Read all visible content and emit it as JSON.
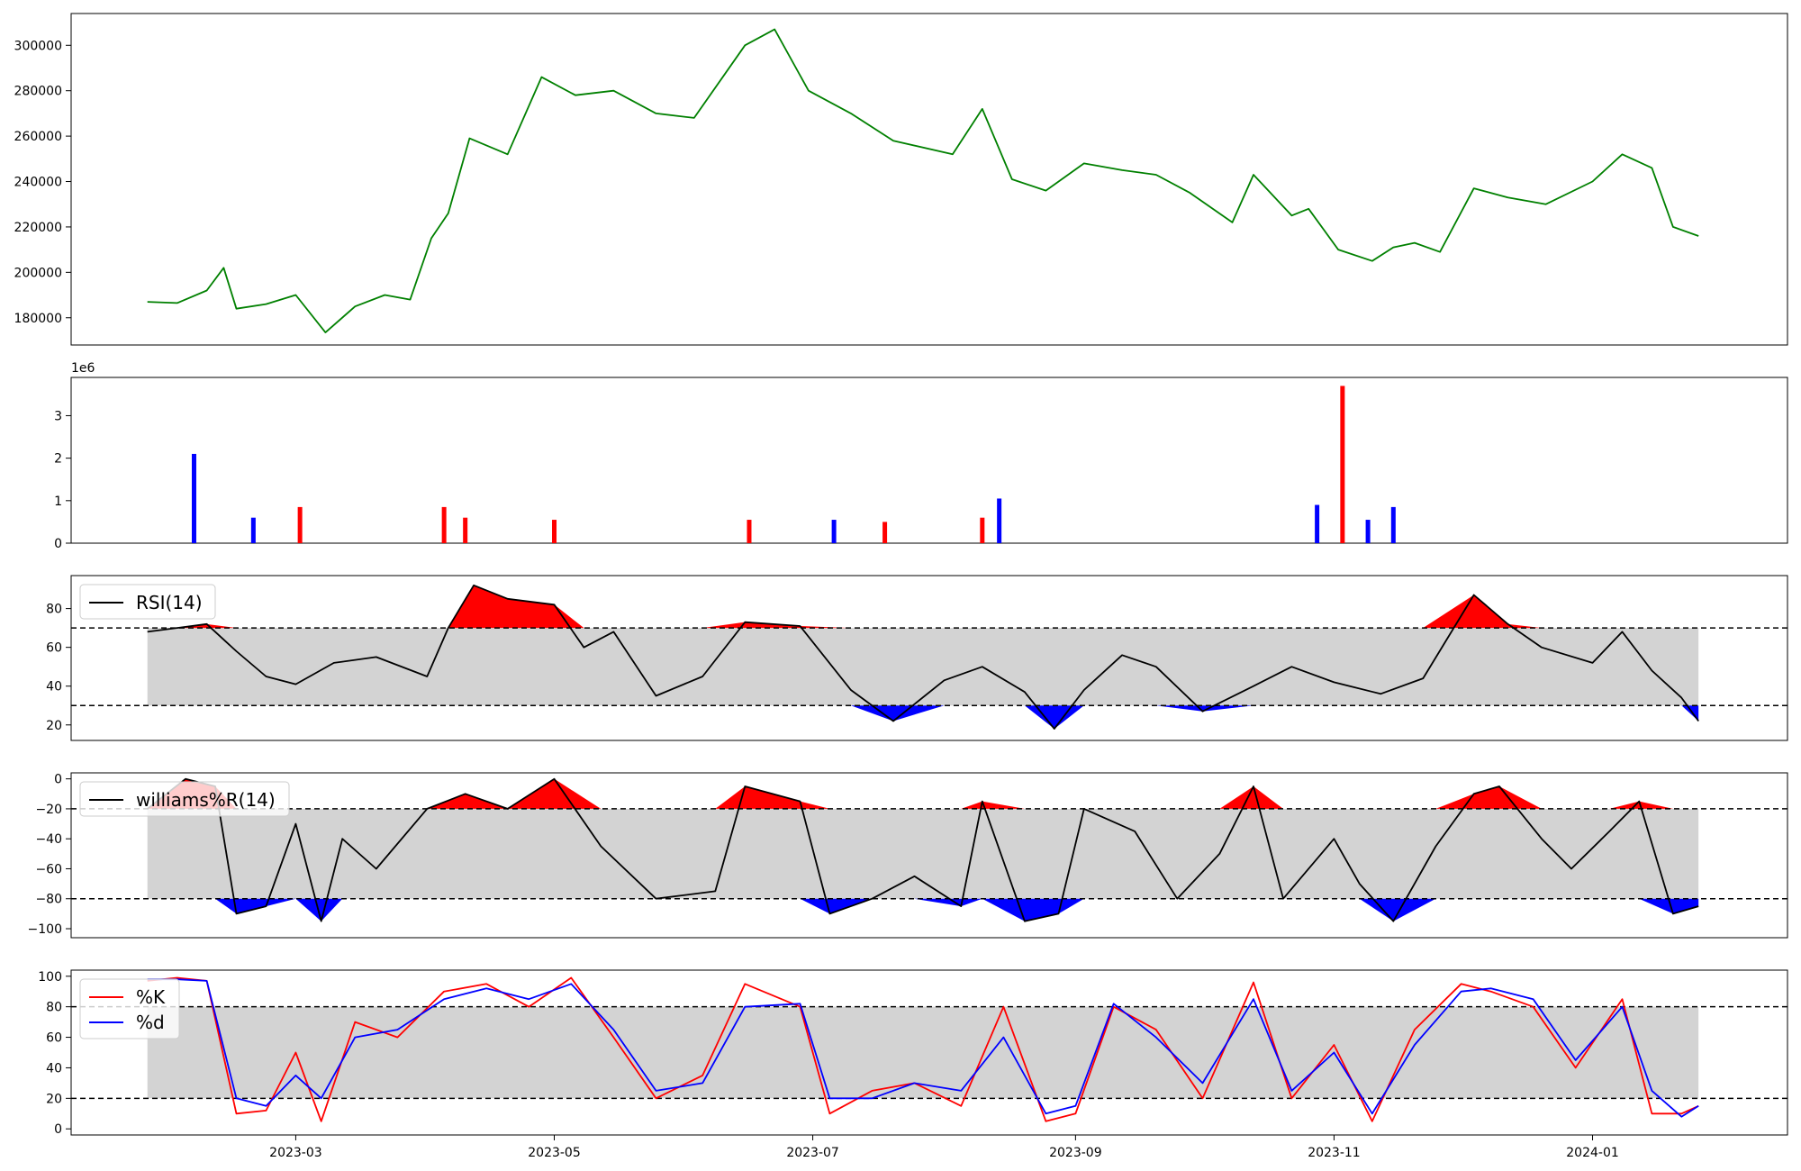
{
  "chart_data": [
    {
      "type": "line",
      "name_hint": "price",
      "ylim": [
        168000,
        314000
      ],
      "yticks": [
        "180000",
        "200000",
        "220000",
        "240000",
        "260000",
        "280000",
        "300000"
      ],
      "color": "#008000",
      "x": [
        "2023-01-25",
        "2023-02-01",
        "2023-02-08",
        "2023-02-12",
        "2023-02-15",
        "2023-02-22",
        "2023-03-01",
        "2023-03-08",
        "2023-03-15",
        "2023-03-22",
        "2023-03-28",
        "2023-04-02",
        "2023-04-06",
        "2023-04-11",
        "2023-04-20",
        "2023-04-28",
        "2023-05-06",
        "2023-05-15",
        "2023-05-25",
        "2023-06-03",
        "2023-06-15",
        "2023-06-22",
        "2023-06-30",
        "2023-07-10",
        "2023-07-20",
        "2023-08-03",
        "2023-08-10",
        "2023-08-17",
        "2023-08-25",
        "2023-09-03",
        "2023-09-12",
        "2023-09-20",
        "2023-09-28",
        "2023-10-08",
        "2023-10-13",
        "2023-10-22",
        "2023-10-26",
        "2023-11-02",
        "2023-11-10",
        "2023-11-15",
        "2023-11-20",
        "2023-11-26",
        "2023-12-04",
        "2023-12-12",
        "2023-12-21",
        "2024-01-01",
        "2024-01-08",
        "2024-01-15",
        "2024-01-20",
        "2024-01-26"
      ],
      "y": [
        187000,
        186500,
        192000,
        202000,
        184000,
        186000,
        190000,
        173500,
        185000,
        190000,
        188000,
        215000,
        226000,
        259000,
        252000,
        286000,
        278000,
        280000,
        270000,
        268000,
        300000,
        307000,
        280000,
        270000,
        258000,
        252000,
        272000,
        241000,
        236000,
        248000,
        245000,
        243000,
        235000,
        222000,
        243000,
        225000,
        228000,
        210000,
        205000,
        211000,
        213000,
        209000,
        237000,
        233000,
        230000,
        240000,
        252000,
        246000,
        220000,
        216000
      ]
    },
    {
      "type": "bar",
      "name_hint": "volume",
      "multiplier_label": "1e6",
      "ylim": [
        0,
        3.9
      ],
      "yticks": [
        "0",
        "1",
        "2",
        "3"
      ],
      "up_color": "#ff0000",
      "down_color": "#0000ff",
      "x": [
        "2023-02-05",
        "2023-02-19",
        "2023-03-02",
        "2023-04-05",
        "2023-04-10",
        "2023-05-01",
        "2023-06-16",
        "2023-07-06",
        "2023-07-18",
        "2023-08-10",
        "2023-08-14",
        "2023-10-28",
        "2023-11-03",
        "2023-11-09",
        "2023-11-15"
      ],
      "values": [
        2.1,
        0.6,
        0.85,
        0.85,
        0.6,
        0.55,
        0.55,
        0.55,
        0.5,
        0.6,
        1.05,
        0.9,
        3.7,
        0.55,
        0.85
      ],
      "colors": [
        "down",
        "down",
        "up",
        "up",
        "up",
        "up",
        "up",
        "down",
        "up",
        "up",
        "down",
        "down",
        "up",
        "down",
        "down"
      ]
    },
    {
      "type": "line",
      "name_hint": "oscillator",
      "ylim": [
        12,
        97
      ],
      "yticks": [
        "20",
        "40",
        "60",
        "80"
      ],
      "hlines": [
        70,
        30
      ],
      "legend": [
        "RSI(14)"
      ],
      "x": [
        "2023-01-25",
        "2023-02-01",
        "2023-02-08",
        "2023-02-15",
        "2023-02-22",
        "2023-03-01",
        "2023-03-10",
        "2023-03-20",
        "2023-04-01",
        "2023-04-06",
        "2023-04-12",
        "2023-04-20",
        "2023-05-01",
        "2023-05-08",
        "2023-05-15",
        "2023-05-25",
        "2023-06-05",
        "2023-06-15",
        "2023-06-28",
        "2023-07-10",
        "2023-07-20",
        "2023-08-01",
        "2023-08-10",
        "2023-08-20",
        "2023-08-27",
        "2023-09-03",
        "2023-09-12",
        "2023-09-20",
        "2023-10-01",
        "2023-10-13",
        "2023-10-22",
        "2023-11-01",
        "2023-11-12",
        "2023-11-22",
        "2023-12-04",
        "2023-12-12",
        "2023-12-20",
        "2024-01-01",
        "2024-01-08",
        "2024-01-15",
        "2024-01-22",
        "2024-01-26"
      ],
      "values": [
        68,
        70,
        72,
        58,
        45,
        41,
        52,
        55,
        45,
        70,
        92,
        85,
        82,
        60,
        68,
        35,
        45,
        73,
        71,
        38,
        22,
        43,
        50,
        37,
        18,
        38,
        56,
        50,
        27,
        40,
        50,
        42,
        36,
        44,
        87,
        72,
        60,
        52,
        68,
        48,
        34,
        22
      ]
    },
    {
      "type": "line",
      "name_hint": "williams",
      "ylim": [
        -106,
        4
      ],
      "yticks": [
        "0",
        "−20",
        "−40",
        "−60",
        "−80",
        "−100"
      ],
      "hlines": [
        -20,
        -80
      ],
      "legend": [
        "williams%R(14)"
      ],
      "x": [
        "2023-01-25",
        "2023-02-03",
        "2023-02-10",
        "2023-02-15",
        "2023-02-22",
        "2023-03-01",
        "2023-03-07",
        "2023-03-12",
        "2023-03-20",
        "2023-04-01",
        "2023-04-10",
        "2023-04-20",
        "2023-05-01",
        "2023-05-12",
        "2023-05-25",
        "2023-06-08",
        "2023-06-15",
        "2023-06-28",
        "2023-07-05",
        "2023-07-15",
        "2023-07-25",
        "2023-08-05",
        "2023-08-10",
        "2023-08-20",
        "2023-08-28",
        "2023-09-03",
        "2023-09-15",
        "2023-09-25",
        "2023-10-05",
        "2023-10-13",
        "2023-10-20",
        "2023-11-01",
        "2023-11-07",
        "2023-11-15",
        "2023-11-25",
        "2023-12-04",
        "2023-12-10",
        "2023-12-20",
        "2023-12-27",
        "2024-01-05",
        "2024-01-12",
        "2024-01-20",
        "2024-01-26"
      ],
      "values": [
        -20,
        0,
        -5,
        -90,
        -85,
        -30,
        -95,
        -40,
        -60,
        -20,
        -10,
        -20,
        0,
        -45,
        -80,
        -75,
        -5,
        -15,
        -90,
        -80,
        -65,
        -85,
        -15,
        -95,
        -90,
        -20,
        -35,
        -80,
        -50,
        -5,
        -80,
        -40,
        -70,
        -95,
        -45,
        -10,
        -5,
        -40,
        -60,
        -35,
        -15,
        -90,
        -85
      ]
    },
    {
      "type": "line",
      "name_hint": "stochastic",
      "ylim": [
        -4,
        104
      ],
      "yticks": [
        "0",
        "20",
        "40",
        "60",
        "80",
        "100"
      ],
      "hlines": [
        80,
        20
      ],
      "legend": [
        "%K",
        "%d"
      ],
      "x": [
        "2023-01-25",
        "2023-02-01",
        "2023-02-08",
        "2023-02-15",
        "2023-02-22",
        "2023-03-01",
        "2023-03-07",
        "2023-03-15",
        "2023-03-25",
        "2023-04-05",
        "2023-04-15",
        "2023-04-25",
        "2023-05-05",
        "2023-05-15",
        "2023-05-25",
        "2023-06-05",
        "2023-06-15",
        "2023-06-28",
        "2023-07-05",
        "2023-07-15",
        "2023-07-25",
        "2023-08-05",
        "2023-08-15",
        "2023-08-25",
        "2023-09-01",
        "2023-09-10",
        "2023-09-20",
        "2023-10-01",
        "2023-10-13",
        "2023-10-22",
        "2023-11-01",
        "2023-11-10",
        "2023-11-20",
        "2023-12-01",
        "2023-12-08",
        "2023-12-18",
        "2023-12-28",
        "2024-01-08",
        "2024-01-15",
        "2024-01-22",
        "2024-01-26"
      ],
      "series": [
        {
          "name": "%K",
          "color": "#ff0000",
          "values": [
            97,
            99,
            97,
            10,
            12,
            50,
            5,
            70,
            60,
            90,
            95,
            80,
            99,
            60,
            20,
            35,
            95,
            80,
            10,
            25,
            30,
            15,
            80,
            5,
            10,
            80,
            65,
            20,
            96,
            20,
            55,
            5,
            65,
            95,
            90,
            80,
            40,
            85,
            10,
            10,
            15
          ]
        },
        {
          "name": "%d",
          "color": "#0000ff",
          "values": [
            98,
            98,
            97,
            20,
            15,
            35,
            20,
            60,
            65,
            85,
            92,
            85,
            95,
            65,
            25,
            30,
            80,
            82,
            20,
            20,
            30,
            25,
            60,
            10,
            15,
            82,
            60,
            30,
            85,
            25,
            50,
            10,
            55,
            90,
            92,
            85,
            45,
            80,
            25,
            8,
            15
          ]
        }
      ]
    }
  ],
  "shared_x_axis": {
    "ticks": [
      "2023-03",
      "2023-05",
      "2023-07",
      "2023-09",
      "2023-11",
      "2024-01"
    ],
    "range": [
      "2023-01-07",
      "2024-02-16"
    ]
  }
}
